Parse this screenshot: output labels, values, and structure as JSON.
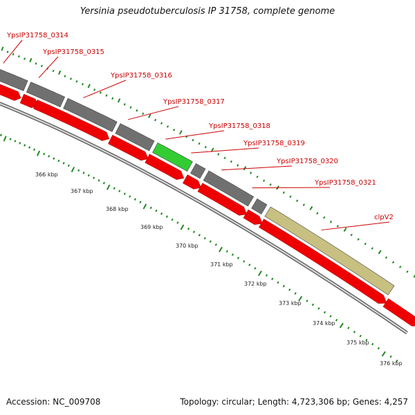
{
  "title": "Yersinia pseudotuberculosis IP 31758, complete genome",
  "footer": {
    "accession": "Accession: NC_009708",
    "topology": "Topology: circular; Length: 4,723,306 bp; Genes: 4,257"
  },
  "colors": {
    "gene_label": "#cc0000",
    "cds": "#ee0000",
    "gene_default": "#707070",
    "gene_highlight": "#33cc33",
    "gene_clpv2": "#c8c080",
    "scale_tick": "#228822",
    "backbone": "#888888"
  },
  "genes": [
    {
      "label": "YpsIP31758_0314",
      "kind": "default"
    },
    {
      "label": "YpsIP31758_0315",
      "kind": "default"
    },
    {
      "label": "YpsIP31758_0316",
      "kind": "default"
    },
    {
      "label": "YpsIP31758_0317",
      "kind": "default"
    },
    {
      "label": "YpsIP31758_0318",
      "kind": "highlight"
    },
    {
      "label": "YpsIP31758_0319",
      "kind": "default"
    },
    {
      "label": "YpsIP31758_0320",
      "kind": "default"
    },
    {
      "label": "YpsIP31758_0321",
      "kind": "default"
    },
    {
      "label": "clpV2",
      "kind": "clpv2"
    }
  ],
  "scale_labels": [
    "366 kbp",
    "367 kbp",
    "368 kbp",
    "369 kbp",
    "370 kbp",
    "371 kbp",
    "372 kbp",
    "373 kbp",
    "374 kbp",
    "375 kbp",
    "376 kbp"
  ]
}
